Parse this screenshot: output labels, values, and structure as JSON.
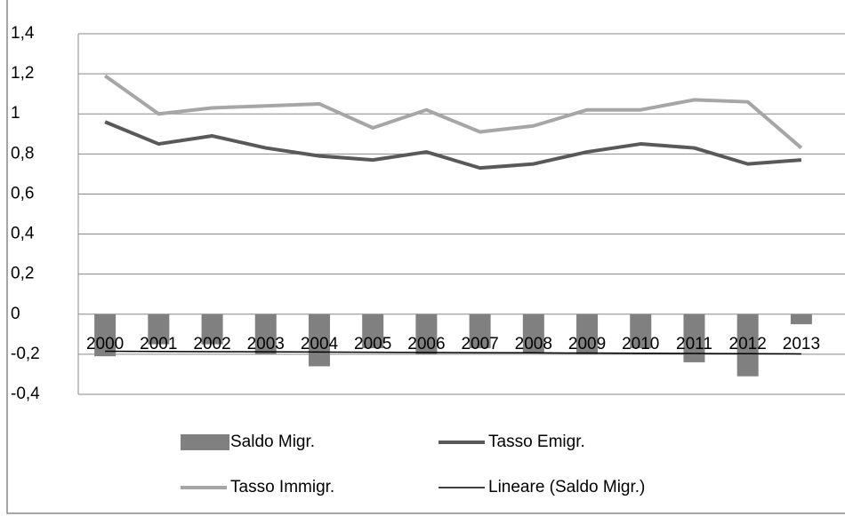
{
  "chart_data": {
    "type": "combo",
    "categories": [
      "2000",
      "2001",
      "2002",
      "2003",
      "2004",
      "2005",
      "2006",
      "2007",
      "2008",
      "2009",
      "2010",
      "2011",
      "2012",
      "2013"
    ],
    "series": [
      {
        "name": "Saldo Migr.",
        "type": "bar",
        "color": "#808080",
        "values": [
          -0.21,
          -0.15,
          -0.15,
          -0.2,
          -0.26,
          -0.17,
          -0.2,
          -0.17,
          -0.19,
          -0.2,
          -0.17,
          -0.24,
          -0.31,
          -0.05
        ]
      },
      {
        "name": "Tasso Emigr.",
        "type": "line",
        "color": "#595959",
        "width": 4,
        "values": [
          0.96,
          0.85,
          0.89,
          0.83,
          0.79,
          0.77,
          0.81,
          0.73,
          0.75,
          0.81,
          0.85,
          0.83,
          0.75,
          0.77
        ]
      },
      {
        "name": "Tasso Immigr.",
        "type": "line",
        "color": "#a6a6a6",
        "width": 4,
        "values": [
          1.19,
          1.0,
          1.03,
          1.04,
          1.05,
          0.93,
          1.02,
          0.91,
          0.94,
          1.02,
          1.02,
          1.07,
          1.06,
          0.83
        ]
      },
      {
        "name": "Lineare (Saldo Migr.)",
        "type": "line",
        "color": "#000000",
        "width": 1.5,
        "values": [
          -0.185,
          -0.186,
          -0.187,
          -0.188,
          -0.189,
          -0.19,
          -0.191,
          -0.192,
          -0.193,
          -0.194,
          -0.195,
          -0.196,
          -0.197,
          -0.198
        ]
      }
    ],
    "ylim": [
      -0.4,
      1.4
    ],
    "yticks": [
      {
        "value": -0.4,
        "label": "-0,4"
      },
      {
        "value": -0.2,
        "label": "-0,2"
      },
      0,
      {
        "value": 0.2,
        "label": "0,2"
      },
      {
        "value": 0.4,
        "label": "0,4"
      },
      {
        "value": 0.6,
        "label": "0,6"
      },
      {
        "value": 0.8,
        "label": "0,8"
      },
      1,
      {
        "value": 1.2,
        "label": "1,2"
      },
      {
        "value": 1.4,
        "label": "1,4"
      }
    ],
    "grid": true
  }
}
